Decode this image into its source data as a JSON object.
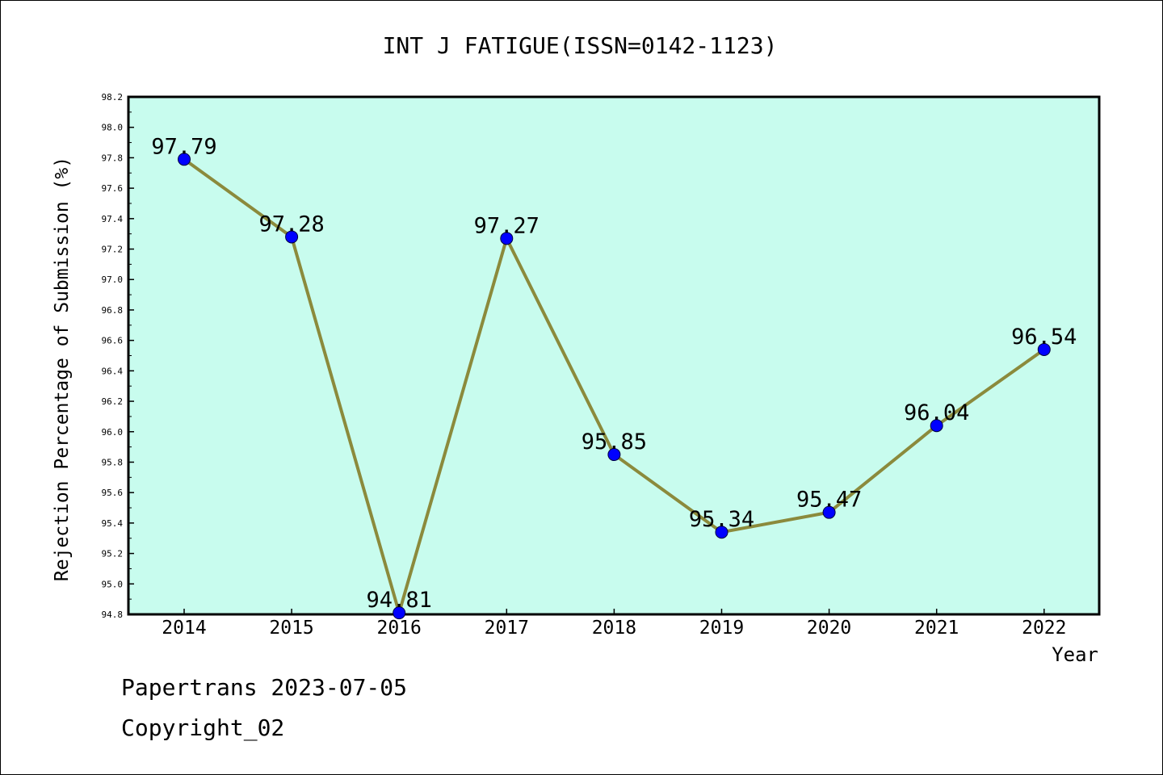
{
  "chart_data": {
    "type": "line",
    "title": "INT J FATIGUE(ISSN=0142-1123)",
    "xlabel": "Year",
    "ylabel": "Rejection Percentage of Submission (%)",
    "categories": [
      "2014",
      "2015",
      "2016",
      "2017",
      "2018",
      "2019",
      "2020",
      "2021",
      "2022"
    ],
    "values": [
      97.79,
      97.28,
      94.81,
      97.27,
      95.85,
      95.34,
      95.47,
      96.04,
      96.54
    ],
    "data_labels": [
      "97.79",
      "97.28",
      "94.81",
      "97.27",
      "95.85",
      "95.34",
      "95.47",
      "96.04",
      "96.54"
    ],
    "ylim": [
      94.8,
      98.2
    ],
    "y_ticks": [
      "94.8",
      "95.0",
      "95.2",
      "95.4",
      "95.6",
      "95.8",
      "96.0",
      "96.2",
      "96.4",
      "96.6",
      "96.8",
      "97.0",
      "97.2",
      "97.4",
      "97.6",
      "97.8",
      "98.0",
      "98.2"
    ],
    "grid": false,
    "colors": {
      "plot_background": "#c8fcee",
      "line": "#8b8a3c",
      "marker": "#0000ff"
    }
  },
  "footer": {
    "line1": "Papertrans 2023-07-05",
    "line2": "Copyright_02"
  }
}
